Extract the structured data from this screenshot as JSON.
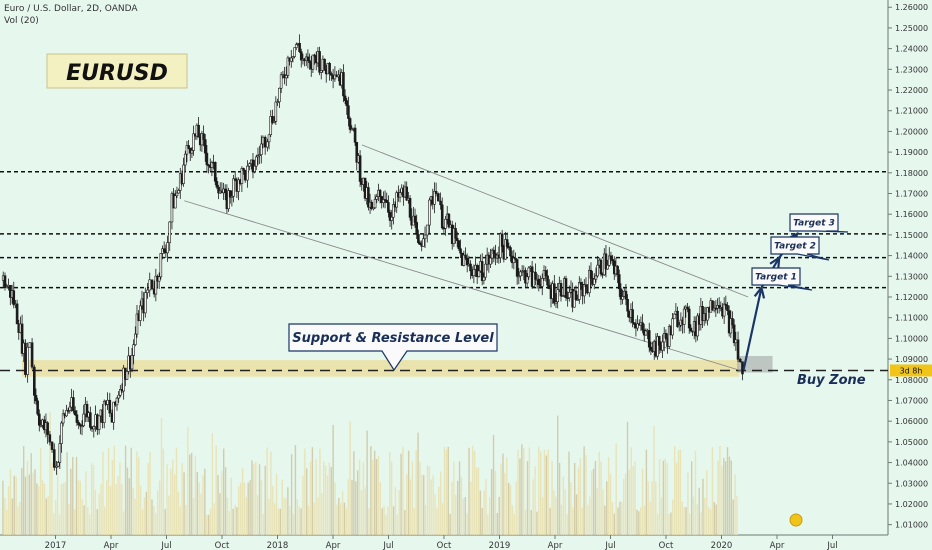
{
  "header": {
    "title": "Euro / U.S. Dollar, 2D, OANDA",
    "volume_label": "Vol (20)"
  },
  "badge": {
    "text": "EURUSD"
  },
  "annotations": {
    "support_resistance": "Support & Resistance Level",
    "buy_zone": "Buy Zone",
    "target1": "Target 1",
    "target2": "Target 2",
    "target3": "Target 3"
  },
  "price_marker": {
    "value": 1.0845,
    "text": "3d 8h"
  },
  "colors": {
    "background": "#e6f7ee",
    "candle_dark": "#1b1b1b",
    "candle_light": "#f4f4ec",
    "volume": "#e9e3b8",
    "zone": "#ecdc97",
    "arrow": "#1a3666",
    "label_border": "#1a3666"
  },
  "chart_data": {
    "type": "candlestick",
    "instrument": "Euro / U.S. Dollar",
    "timeframe": "2D",
    "source": "OANDA",
    "x_ticks": [
      "2017",
      "Apr",
      "Jul",
      "Oct",
      "2018",
      "Apr",
      "Jul",
      "Oct",
      "2019",
      "Apr",
      "Jul",
      "Oct",
      "2020",
      "Apr",
      "Jul"
    ],
    "y_ticks": [
      "1.26000",
      "1.25000",
      "1.24000",
      "1.23000",
      "1.22000",
      "1.21000",
      "1.20000",
      "1.19000",
      "1.18000",
      "1.17000",
      "1.16000",
      "1.15000",
      "1.14000",
      "1.13000",
      "1.12000",
      "1.11000",
      "1.10000",
      "1.09000",
      "1.08000",
      "1.07000",
      "1.06000",
      "1.05000",
      "1.04000",
      "1.03000",
      "1.02000",
      "1.01000"
    ],
    "ylim": [
      1.005,
      1.2635
    ],
    "xlim": [
      2016.75,
      2020.75
    ],
    "close_path": [
      [
        2016.76,
        1.128
      ],
      [
        2016.8,
        1.121
      ],
      [
        2016.83,
        1.108
      ],
      [
        2016.86,
        1.088
      ],
      [
        2016.88,
        1.1
      ],
      [
        2016.9,
        1.075
      ],
      [
        2016.93,
        1.058
      ],
      [
        2016.96,
        1.055
      ],
      [
        2016.98,
        1.045
      ],
      [
        2017.0,
        1.038
      ],
      [
        2017.03,
        1.062
      ],
      [
        2017.06,
        1.068
      ],
      [
        2017.1,
        1.058
      ],
      [
        2017.13,
        1.066
      ],
      [
        2017.16,
        1.06
      ],
      [
        2017.2,
        1.062
      ],
      [
        2017.23,
        1.068
      ],
      [
        2017.25,
        1.06
      ],
      [
        2017.28,
        1.075
      ],
      [
        2017.31,
        1.085
      ],
      [
        2017.34,
        1.092
      ],
      [
        2017.37,
        1.112
      ],
      [
        2017.4,
        1.118
      ],
      [
        2017.42,
        1.128
      ],
      [
        2017.44,
        1.125
      ],
      [
        2017.47,
        1.138
      ],
      [
        2017.5,
        1.148
      ],
      [
        2017.52,
        1.165
      ],
      [
        2017.55,
        1.172
      ],
      [
        2017.58,
        1.188
      ],
      [
        2017.61,
        1.196
      ],
      [
        2017.64,
        1.198
      ],
      [
        2017.67,
        1.19
      ],
      [
        2017.7,
        1.182
      ],
      [
        2017.73,
        1.175
      ],
      [
        2017.76,
        1.165
      ],
      [
        2017.79,
        1.172
      ],
      [
        2017.82,
        1.178
      ],
      [
        2017.85,
        1.18
      ],
      [
        2017.87,
        1.18
      ],
      [
        2017.9,
        1.186
      ],
      [
        2017.93,
        1.195
      ],
      [
        2017.95,
        1.2
      ],
      [
        2017.98,
        1.21
      ],
      [
        2018.02,
        1.225
      ],
      [
        2018.05,
        1.238
      ],
      [
        2018.08,
        1.242
      ],
      [
        2018.11,
        1.235
      ],
      [
        2018.14,
        1.23
      ],
      [
        2018.17,
        1.238
      ],
      [
        2018.2,
        1.23
      ],
      [
        2018.23,
        1.232
      ],
      [
        2018.27,
        1.228
      ],
      [
        2018.3,
        1.22
      ],
      [
        2018.33,
        1.2
      ],
      [
        2018.36,
        1.185
      ],
      [
        2018.39,
        1.17
      ],
      [
        2018.42,
        1.16
      ],
      [
        2018.45,
        1.168
      ],
      [
        2018.48,
        1.17
      ],
      [
        2018.51,
        1.158
      ],
      [
        2018.54,
        1.168
      ],
      [
        2018.57,
        1.17
      ],
      [
        2018.6,
        1.16
      ],
      [
        2018.63,
        1.142
      ],
      [
        2018.66,
        1.155
      ],
      [
        2018.68,
        1.162
      ],
      [
        2018.71,
        1.175
      ],
      [
        2018.73,
        1.16
      ],
      [
        2018.76,
        1.155
      ],
      [
        2018.79,
        1.148
      ],
      [
        2018.82,
        1.14
      ],
      [
        2018.85,
        1.135
      ],
      [
        2018.88,
        1.134
      ],
      [
        2018.91,
        1.132
      ],
      [
        2018.94,
        1.137
      ],
      [
        2018.97,
        1.14
      ],
      [
        2019.0,
        1.145
      ],
      [
        2019.03,
        1.142
      ],
      [
        2019.06,
        1.14
      ],
      [
        2019.09,
        1.13
      ],
      [
        2019.12,
        1.132
      ],
      [
        2019.15,
        1.128
      ],
      [
        2019.18,
        1.13
      ],
      [
        2019.22,
        1.124
      ],
      [
        2019.25,
        1.122
      ],
      [
        2019.28,
        1.126
      ],
      [
        2019.31,
        1.118
      ],
      [
        2019.34,
        1.12
      ],
      [
        2019.37,
        1.124
      ],
      [
        2019.4,
        1.128
      ],
      [
        2019.43,
        1.132
      ],
      [
        2019.46,
        1.136
      ],
      [
        2019.49,
        1.138
      ],
      [
        2019.52,
        1.13
      ],
      [
        2019.55,
        1.12
      ],
      [
        2019.58,
        1.115
      ],
      [
        2019.61,
        1.108
      ],
      [
        2019.64,
        1.102
      ],
      [
        2019.67,
        1.1
      ],
      [
        2019.7,
        1.095
      ],
      [
        2019.73,
        1.098
      ],
      [
        2019.76,
        1.102
      ],
      [
        2019.79,
        1.11
      ],
      [
        2019.82,
        1.112
      ],
      [
        2019.85,
        1.108
      ],
      [
        2019.88,
        1.106
      ],
      [
        2019.91,
        1.112
      ],
      [
        2019.94,
        1.115
      ],
      [
        2019.97,
        1.12
      ],
      [
        2020.0,
        1.116
      ],
      [
        2020.03,
        1.108
      ],
      [
        2020.06,
        1.098
      ],
      [
        2020.08,
        1.086
      ],
      [
        2020.1,
        1.083
      ]
    ],
    "levels": [
      1.1805,
      1.1505,
      1.139,
      1.1245,
      1.0845
    ],
    "support_zone": [
      1.0815,
      1.0895
    ],
    "buy_zone_box": {
      "x": [
        2020.07,
        2020.23
      ],
      "y": [
        1.0835,
        1.0915
      ]
    },
    "channel_lines": [
      {
        "from": [
          2017.58,
          1.1665
        ],
        "to": [
          2020.1,
          1.084
        ]
      },
      {
        "from": [
          2018.38,
          1.1935
        ],
        "to": [
          2020.12,
          1.12
        ]
      }
    ],
    "target_arrows": [
      {
        "from": [
          2020.1,
          1.085
        ],
        "to": [
          2020.18,
          1.1245
        ]
      },
      {
        "from": [
          2020.18,
          1.1245
        ],
        "to": [
          2020.26,
          1.139
        ]
      },
      {
        "from": [
          2020.26,
          1.139
        ],
        "to": [
          2020.34,
          1.1505
        ]
      }
    ],
    "volume": {
      "label": "Vol (20)",
      "max": 1.0
    }
  }
}
